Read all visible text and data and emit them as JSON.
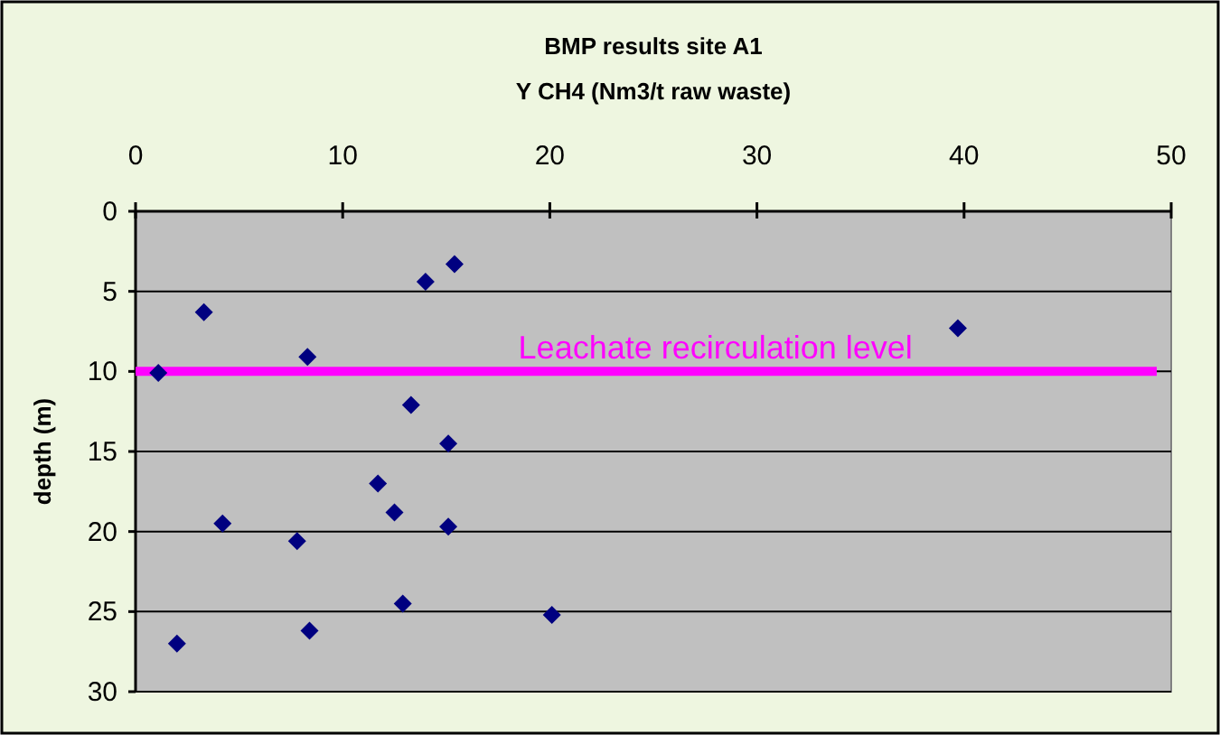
{
  "chart_data": {
    "type": "scatter",
    "title": "BMP results site A1",
    "xlabel": "Y CH4 (Nm3/t raw waste)",
    "ylabel": "depth (m)",
    "x": [
      1.1,
      3.3,
      8.3,
      14.0,
      15.4,
      13.3,
      39.7,
      15.1,
      11.7,
      12.5,
      15.1,
      4.2,
      7.8,
      12.9,
      8.4,
      20.1,
      2.0
    ],
    "values": [
      10.1,
      6.3,
      9.1,
      4.4,
      3.3,
      12.1,
      7.3,
      14.5,
      17.0,
      18.8,
      19.7,
      19.5,
      20.6,
      24.5,
      26.2,
      25.2,
      27.0
    ],
    "color": "#000080",
    "marker": "diamond",
    "xlim": [
      0,
      50
    ],
    "xticks": [
      0,
      10,
      20,
      30,
      40,
      50
    ],
    "ylim": [
      30,
      0
    ],
    "yticks": [
      0,
      5,
      10,
      15,
      20,
      25,
      30
    ],
    "grid": "y",
    "ref_lines": [
      {
        "axis": "y",
        "value": 10,
        "label": "Leachate recirculation level",
        "color": "#ff00ff"
      }
    ]
  }
}
